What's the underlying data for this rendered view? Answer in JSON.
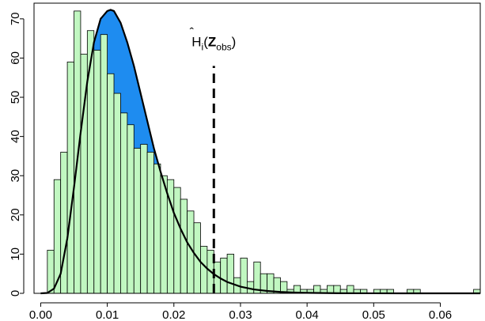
{
  "chart_data": {
    "type": "bar",
    "overlay": "line",
    "grid": false,
    "legend": "none",
    "xlim": [
      -0.001,
      0.066
    ],
    "ylim": [
      0,
      74
    ],
    "x_ticks": [
      0.0,
      0.01,
      0.02,
      0.03,
      0.04,
      0.05,
      0.06
    ],
    "x_tick_labels": [
      "0.00",
      "0.01",
      "0.02",
      "0.03",
      "0.04",
      "0.05",
      "0.06"
    ],
    "y_ticks": [
      0,
      10,
      20,
      30,
      40,
      50,
      60,
      70
    ],
    "y_tick_labels": [
      "0",
      "10",
      "20",
      "30",
      "40",
      "50",
      "60",
      "70"
    ],
    "histogram": {
      "bin_width": 0.001,
      "bin_starts": [
        0.0,
        0.001,
        0.002,
        0.003,
        0.004,
        0.005,
        0.006,
        0.007,
        0.008,
        0.009,
        0.01,
        0.011,
        0.012,
        0.013,
        0.014,
        0.015,
        0.016,
        0.017,
        0.018,
        0.019,
        0.02,
        0.021,
        0.022,
        0.023,
        0.024,
        0.025,
        0.026,
        0.027,
        0.028,
        0.029,
        0.03,
        0.031,
        0.032,
        0.033,
        0.034,
        0.035,
        0.036,
        0.037,
        0.038,
        0.039,
        0.04,
        0.041,
        0.042,
        0.043,
        0.044,
        0.045,
        0.046,
        0.047,
        0.048,
        0.049,
        0.05,
        0.051,
        0.052,
        0.053,
        0.054,
        0.055,
        0.056,
        0.057,
        0.058,
        0.059,
        0.06,
        0.061,
        0.062,
        0.063,
        0.064,
        0.065
      ],
      "counts": [
        0,
        11,
        29,
        36,
        59,
        72,
        61,
        67,
        62,
        66,
        56,
        51,
        46,
        43,
        37,
        38,
        36,
        33,
        30,
        29,
        27,
        24,
        21,
        18,
        12,
        11,
        8,
        9,
        10,
        4,
        9,
        3,
        8,
        5,
        5,
        4,
        3,
        1,
        2,
        1,
        1,
        2,
        1,
        2,
        2,
        1,
        2,
        1,
        1,
        0,
        1,
        1,
        1,
        0,
        0,
        1,
        1,
        0,
        0,
        0,
        0,
        0,
        0,
        0,
        0,
        1
      ],
      "color": "#c1f7c1",
      "edge_color": "#000000"
    },
    "density_curve": {
      "x": [
        0.0,
        0.001,
        0.002,
        0.003,
        0.004,
        0.005,
        0.006,
        0.007,
        0.008,
        0.009,
        0.01,
        0.0105,
        0.011,
        0.012,
        0.013,
        0.014,
        0.015,
        0.016,
        0.017,
        0.018,
        0.019,
        0.02,
        0.021,
        0.022,
        0.023,
        0.024,
        0.025,
        0.026,
        0.027,
        0.028,
        0.03,
        0.032,
        0.034,
        0.036,
        0.038,
        0.04,
        0.045,
        0.05,
        0.055,
        0.06,
        0.066
      ],
      "y": [
        0,
        0.1,
        1.2,
        5,
        14,
        27,
        41,
        54,
        64,
        70,
        72,
        72.3,
        72,
        69,
        64,
        58,
        51,
        44,
        37,
        31,
        25.5,
        20.5,
        16.5,
        13,
        10.3,
        8,
        6.3,
        4.9,
        3.8,
        2.9,
        1.7,
        1.0,
        0.6,
        0.35,
        0.2,
        0.12,
        0.03,
        0.01,
        0,
        0,
        0
      ],
      "color": "#000000"
    },
    "shaded_region": {
      "description_free": true,
      "from": 0.0,
      "to": 0.026,
      "color": "#1e8cf0"
    },
    "vline": {
      "x": 0.026,
      "y_top": 58,
      "style": "dashed",
      "color": "#000000"
    },
    "annotation": {
      "x": 0.026,
      "y": 63,
      "text": {
        "h": "H",
        "hat": "ˆ",
        "sub_i": "i",
        "open_paren": "(",
        "z": "Z",
        "sub_obs": "obs",
        "close_paren": ")"
      }
    }
  }
}
